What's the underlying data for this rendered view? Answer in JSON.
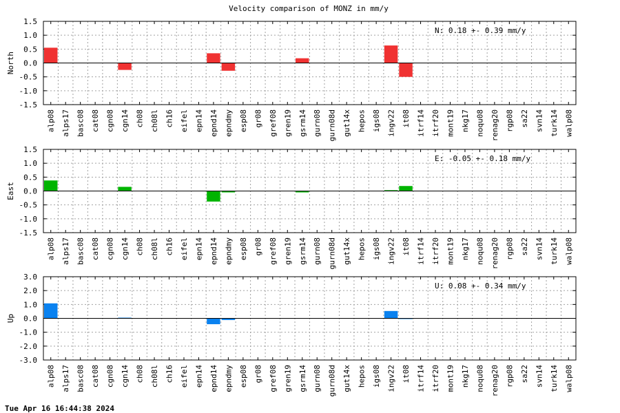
{
  "title": "Velocity comparison of MONZ in mm/y",
  "timestamp": "Tue Apr 16 16:44:38 2024",
  "chart_data": [
    {
      "type": "bar",
      "ylabel": "North",
      "ylim": [
        -1.5,
        1.5
      ],
      "yticks": [
        "1.5",
        "1.0",
        "0.5",
        "0.0",
        "-0.5",
        "-1.0",
        "-1.5"
      ],
      "ytick_values": [
        1.5,
        1.0,
        0.5,
        0.0,
        -0.5,
        -1.0,
        -1.5
      ],
      "color": "#f03232",
      "annotation": "N:   0.18 +-  0.39 mm/y",
      "grid": true,
      "categories": [
        "alp08",
        "alps17",
        "basc08",
        "cat08",
        "cgn08",
        "cgn14",
        "ch08",
        "ch08l",
        "ch16",
        "eifel",
        "epn14",
        "epnd14",
        "epndmy",
        "esp08",
        "gr08",
        "gref08",
        "gren19",
        "gsrm14",
        "gurn08",
        "gurn08d",
        "gut14x",
        "hepos",
        "igs08",
        "ingv22",
        "it08",
        "itrf14",
        "itrf20",
        "mont19",
        "nkg17",
        "noqu08",
        "renag20",
        "rgp08",
        "sa22",
        "svn14",
        "turk14",
        "walp08"
      ],
      "values": [
        0.55,
        0,
        0,
        0,
        0,
        -0.25,
        0,
        0,
        0,
        0,
        0,
        0.35,
        -0.28,
        0,
        0,
        0,
        0,
        0.17,
        0,
        0,
        0,
        0,
        0,
        0.63,
        -0.5,
        0,
        0,
        0,
        0,
        0,
        0,
        0,
        0,
        0,
        0,
        0
      ]
    },
    {
      "type": "bar",
      "ylabel": "East",
      "ylim": [
        -1.5,
        1.5
      ],
      "yticks": [
        "1.5",
        "1.0",
        "0.5",
        "0.0",
        "-0.5",
        "-1.0",
        "-1.5"
      ],
      "ytick_values": [
        1.5,
        1.0,
        0.5,
        0.0,
        -0.5,
        -1.0,
        -1.5
      ],
      "color": "#00b400",
      "annotation": "E:  -0.05 +-  0.18 mm/y",
      "grid": true,
      "categories": [
        "alp08",
        "alps17",
        "basc08",
        "cat08",
        "cgn08",
        "cgn14",
        "ch08",
        "ch08l",
        "ch16",
        "eifel",
        "epn14",
        "epnd14",
        "epndmy",
        "esp08",
        "gr08",
        "gref08",
        "gren19",
        "gsrm14",
        "gurn08",
        "gurn08d",
        "gut14x",
        "hepos",
        "igs08",
        "ingv22",
        "it08",
        "itrf14",
        "itrf20",
        "mont19",
        "nkg17",
        "noqu08",
        "renag20",
        "rgp08",
        "sa22",
        "svn14",
        "turk14",
        "walp08"
      ],
      "values": [
        0.38,
        0,
        0,
        0,
        0,
        0.15,
        0,
        0,
        0,
        0,
        0,
        -0.38,
        -0.05,
        0,
        0,
        0,
        0,
        -0.05,
        0,
        0,
        0,
        0,
        0,
        0.03,
        0.18,
        0,
        0,
        0,
        0,
        0,
        0,
        0,
        0,
        0,
        0,
        0
      ]
    },
    {
      "type": "bar",
      "ylabel": "Up",
      "ylim": [
        -3.0,
        3.0
      ],
      "yticks": [
        "3.0",
        "2.0",
        "1.0",
        "0.0",
        "-1.0",
        "-2.0",
        "-3.0"
      ],
      "ytick_values": [
        3.0,
        2.0,
        1.0,
        0.0,
        -1.0,
        -2.0,
        -3.0
      ],
      "color": "#0a82f0",
      "annotation": "U:   0.08 +-  0.34 mm/y",
      "grid": true,
      "categories": [
        "alp08",
        "alps17",
        "basc08",
        "cat08",
        "cgn08",
        "cgn14",
        "ch08",
        "ch08l",
        "ch16",
        "eifel",
        "epn14",
        "epnd14",
        "epndmy",
        "esp08",
        "gr08",
        "gref08",
        "gren19",
        "gsrm14",
        "gurn08",
        "gurn08d",
        "gut14x",
        "hepos",
        "igs08",
        "ingv22",
        "it08",
        "itrf14",
        "itrf20",
        "mont19",
        "nkg17",
        "noqu08",
        "renag20",
        "rgp08",
        "sa22",
        "svn14",
        "turk14",
        "walp08"
      ],
      "values": [
        1.08,
        0,
        0,
        0,
        0,
        0.05,
        0,
        0,
        0,
        0,
        0,
        -0.42,
        -0.12,
        0,
        0,
        0,
        0,
        0,
        0,
        0,
        0,
        0,
        0,
        0.53,
        -0.05,
        0,
        0,
        0,
        0,
        0,
        0,
        0,
        0,
        0,
        0,
        0
      ]
    }
  ]
}
